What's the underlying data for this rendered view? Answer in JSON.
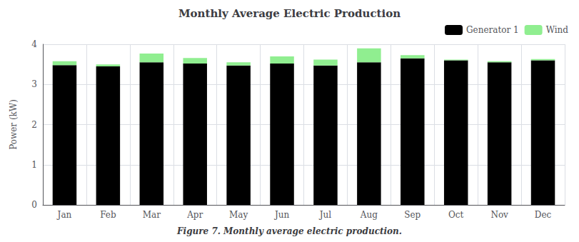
{
  "chart_data": {
    "type": "bar",
    "title": "Monthly Average Electric Production",
    "ylabel": "Power (kW)",
    "caption": "Figure 7. Monthly average electric production.",
    "categories": [
      "Jan",
      "Feb",
      "Mar",
      "Apr",
      "May",
      "Jun",
      "Jul",
      "Aug",
      "Sep",
      "Oct",
      "Nov",
      "Dec"
    ],
    "series": [
      {
        "name": "Generator 1",
        "color": "#000000",
        "values": [
          3.48,
          3.45,
          3.55,
          3.52,
          3.47,
          3.52,
          3.47,
          3.55,
          3.65,
          3.6,
          3.55,
          3.6
        ]
      },
      {
        "name": "Wind",
        "color": "#90EE90",
        "values": [
          0.1,
          0.05,
          0.22,
          0.14,
          0.08,
          0.18,
          0.15,
          0.35,
          0.08,
          0.02,
          0.03,
          0.03
        ]
      }
    ],
    "stacked": true,
    "ylim": [
      0,
      4
    ],
    "yticks": [
      0,
      1,
      2,
      3,
      4
    ],
    "grid": true,
    "legend": "upper right"
  }
}
